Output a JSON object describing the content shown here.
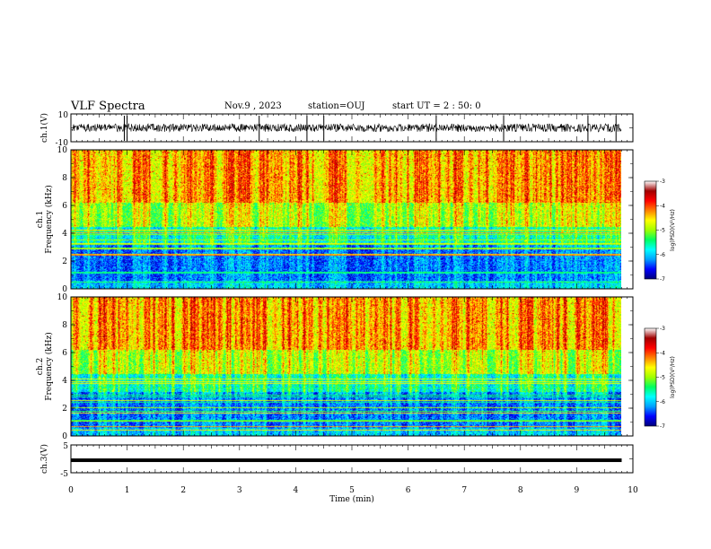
{
  "header": {
    "title": "VLF Spectra",
    "date": "Nov.9 , 2023",
    "station": "station=OUJ",
    "start": "start UT = 2 : 50: 0"
  },
  "colors": {
    "trace": "#000000",
    "colormap": [
      "#00007a",
      "#0000ff",
      "#00a0ff",
      "#00ffff",
      "#00ff60",
      "#a0ff00",
      "#ffff00",
      "#ff8000",
      "#ff0000",
      "#a00000",
      "#ffffff"
    ]
  },
  "chart_data": [
    {
      "type": "line",
      "ylabel": "ch.1(V)",
      "ylim": [
        -10,
        10
      ],
      "yticks": [
        "10",
        "-10"
      ],
      "baseline": 0,
      "spike_times_min": [
        0.95,
        1.0,
        3.35,
        4.2,
        4.5,
        6.5,
        7.7,
        9.2,
        9.7
      ]
    },
    {
      "type": "heatmap",
      "ylabel_lines": [
        "ch.1",
        "Frequency (kHz)"
      ],
      "ylim": [
        0,
        10
      ],
      "yticks": [
        "0",
        "2",
        "4",
        "6",
        "8",
        "10"
      ],
      "colorbar": {
        "label": "log(PSD)(V²/Hz)",
        "range": [
          -7,
          -3
        ],
        "ticks": [
          "-3",
          "-4",
          "-5",
          "-6",
          "-7"
        ]
      }
    },
    {
      "type": "heatmap",
      "ylabel_lines": [
        "ch.2",
        "Frequency (kHz)"
      ],
      "ylim": [
        0,
        10
      ],
      "yticks": [
        "0",
        "2",
        "4",
        "6",
        "8",
        "10"
      ],
      "colorbar": {
        "label": "log(PSD)(V²/Hz)",
        "range": [
          -7,
          -3
        ],
        "ticks": [
          "-3",
          "-4",
          "-5",
          "-6",
          "-7"
        ]
      }
    },
    {
      "type": "line",
      "ylabel": "ch.3(V)",
      "ylim": [
        -5,
        5
      ],
      "yticks": [
        "5",
        "-5"
      ],
      "baseline": -0.5
    }
  ],
  "x_axis": {
    "label": "Time (min)",
    "range": [
      0,
      10
    ],
    "ticks": [
      "0",
      "1",
      "2",
      "3",
      "4",
      "5",
      "6",
      "7",
      "8",
      "9",
      "10"
    ],
    "data_end_min": 9.8
  }
}
